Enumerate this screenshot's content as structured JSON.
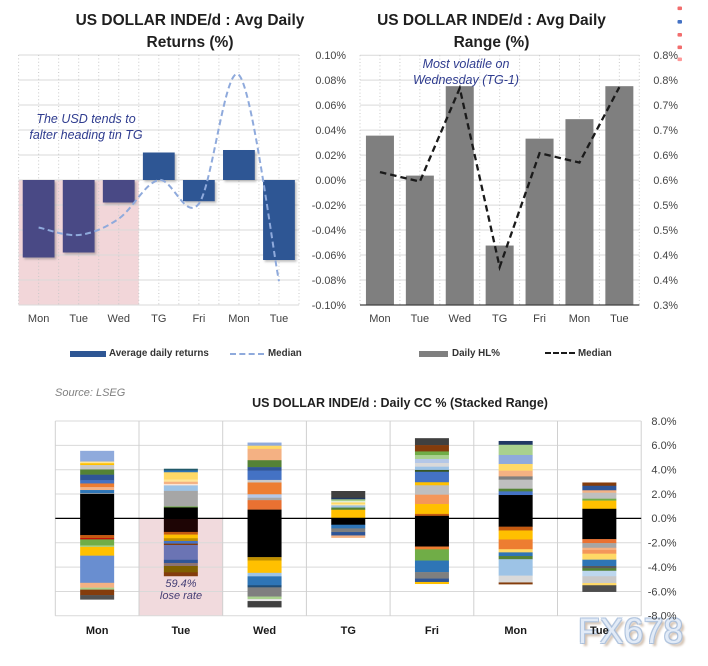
{
  "page_background": "#ffffff",
  "source_note": "Source: LSEG",
  "watermark": "FX678",
  "edge_marks": [
    {
      "y": 6.5,
      "color": "#F26D6D"
    },
    {
      "y": 20.0,
      "color": "#4472C4"
    },
    {
      "y": 33.0,
      "color": "#F26D6D"
    },
    {
      "y": 45.5,
      "color": "#F26D6D"
    },
    {
      "y": 57.5,
      "color": "#FF9999"
    }
  ],
  "chart_data": [
    {
      "type": "bar+line",
      "title": "US DOLLAR INDE/d : Avg Daily Returns (%)",
      "title_lines": [
        "US DOLLAR INDE/d : Avg Daily",
        "Returns (%)"
      ],
      "categories": [
        "Mon",
        "Tue",
        "Wed",
        "TG",
        "Fri",
        "Mon",
        "Tue"
      ],
      "unit": "%",
      "ylim": [
        -0.1,
        0.1
      ],
      "ytick_step": 0.02,
      "ytick_labels": [
        "0.10%",
        "0.08%",
        "0.06%",
        "0.04%",
        "0.02%",
        "0.00%",
        "-0.02%",
        "-0.04%",
        "-0.06%",
        "-0.08%",
        "-0.10%"
      ],
      "series": [
        {
          "name": "Average daily returns",
          "type": "bar",
          "values": [
            -0.062,
            -0.058,
            -0.018,
            0.022,
            -0.017,
            0.024,
            -0.064
          ]
        },
        {
          "name": "Median",
          "type": "line",
          "style": "dashed",
          "smooth": true,
          "values": [
            -0.038,
            -0.044,
            -0.031,
            0.0,
            -0.019,
            0.084,
            -0.081
          ]
        }
      ],
      "annotation": {
        "text_lines": [
          "The USD tends to",
          "falter heading tin TG"
        ],
        "color": "#2F3C8F"
      },
      "highlight": {
        "note": "shaded zone over Mon-Wed below zero",
        "category_span": [
          0,
          3
        ],
        "value_span": [
          -0.1,
          0
        ],
        "color": "#F2D6D9"
      },
      "colors": {
        "bar": "#2E5694",
        "bar_highlighted": "#4A4A85",
        "line": "#8FAADC",
        "zero_line": "#262626"
      },
      "legend": [
        {
          "label": "Average daily returns",
          "swatch": "bar",
          "color": "#2E5694"
        },
        {
          "label": "Median",
          "swatch": "dashed-line",
          "color": "#8FAADC"
        }
      ]
    },
    {
      "type": "bar+line",
      "title": "US DOLLAR INDE/d : Avg Daily Range (%)",
      "title_lines": [
        "US DOLLAR INDE/d : Avg Daily",
        "Range (%)"
      ],
      "categories": [
        "Mon",
        "Tue",
        "Wed",
        "TG",
        "Fri",
        "Mon",
        "Tue"
      ],
      "unit": "%",
      "ylim": [
        0.3,
        0.8
      ],
      "ytick_step": 0.05,
      "ytick_labels": [
        "0.8%",
        "0.8%",
        "0.7%",
        "0.7%",
        "0.6%",
        "0.6%",
        "0.5%",
        "0.5%",
        "0.4%",
        "0.4%",
        "0.3%"
      ],
      "series": [
        {
          "name": "Daily HL%",
          "type": "bar",
          "values": [
            0.639,
            0.559,
            0.738,
            0.419,
            0.633,
            0.672,
            0.738
          ]
        },
        {
          "name": "Median",
          "type": "line",
          "style": "dashed",
          "smooth": false,
          "values": [
            0.566,
            0.547,
            0.734,
            0.376,
            0.604,
            0.585,
            0.736
          ]
        }
      ],
      "annotation": {
        "text_lines": [
          "Most volatile on",
          "Wednesday (TG-1)"
        ],
        "color": "#2F3C8F"
      },
      "colors": {
        "bar": "#7F7F7F",
        "line": "#1A1A1A"
      },
      "legend": [
        {
          "label": "Daily HL%",
          "swatch": "bar",
          "color": "#7F7F7F"
        },
        {
          "label": "Median",
          "swatch": "dashed-line",
          "color": "#1A1A1A"
        }
      ]
    },
    {
      "type": "stacked-bar",
      "title": "US DOLLAR INDE/d : Daily CC % (Stacked Range)",
      "categories": [
        "Mon",
        "Tue",
        "Wed",
        "TG",
        "Fri",
        "Mon",
        "Tue"
      ],
      "unit": "%",
      "ylim": [
        -8,
        8
      ],
      "ytick_step": 2,
      "ytick_labels": [
        "8.0%",
        "6.0%",
        "4.0%",
        "2.0%",
        "0.0%",
        "-2.0%",
        "-4.0%",
        "-6.0%",
        "-8.0%"
      ],
      "annotation": {
        "text_lines": [
          "59.4%",
          "lose rate"
        ],
        "color": "#453F75"
      },
      "highlight": {
        "note": "shaded zone over Tue below zero",
        "category_span": [
          1,
          2
        ],
        "value_span": [
          -8,
          0
        ],
        "color": "#F1DADD"
      },
      "bars": [
        {
          "label": "Mon",
          "top": 5.55,
          "segments": [
            [
              "#8FAADC",
              0.88
            ],
            [
              "#FFE699",
              0.14
            ],
            [
              "#FFC000",
              0.15
            ],
            [
              "#C9C9C9",
              0.36
            ],
            [
              "#548235",
              0.43
            ],
            [
              "#2F5597",
              0.45
            ],
            [
              "#4472C4",
              0.27
            ],
            [
              "#ED7D31",
              0.3
            ],
            [
              "#F4B183",
              0.24
            ],
            [
              "#2E75B6",
              0.26
            ],
            [
              "#A6A6A6",
              0.06
            ],
            [
              "#000000",
              3.38
            ],
            [
              "#C55A11",
              0.25
            ],
            [
              "#C00000",
              0.1
            ],
            [
              "#70AD47",
              0.5
            ],
            [
              "#A9D18E",
              0.12
            ],
            [
              "#FFC000",
              0.72
            ],
            [
              "#698ED0",
              2.23
            ],
            [
              "#F4B183",
              0.4
            ],
            [
              "#A9D18E",
              0.16
            ],
            [
              "#843C0C",
              0.45
            ],
            [
              "#525252",
              0.35
            ]
          ]
        },
        {
          "label": "Tue",
          "top": 4.08,
          "segments": [
            [
              "#215968",
              0.14
            ],
            [
              "#2E75B6",
              0.15
            ],
            [
              "#FFD966",
              0.6
            ],
            [
              "#FFE699",
              0.18
            ],
            [
              "#F4B183",
              0.18
            ],
            [
              "#FBE5D6",
              0.12
            ],
            [
              "#9DC3E6",
              0.45
            ],
            [
              "#A6A6A6",
              1.28
            ],
            [
              "#70AD47",
              0.08
            ],
            [
              "#000000",
              0.9
            ],
            [
              "#1E0505",
              1.11
            ],
            [
              "#C55A11",
              0.22
            ],
            [
              "#FFC000",
              0.3
            ],
            [
              "#BF8F00",
              0.22
            ],
            [
              "#4472C4",
              0.22
            ],
            [
              "#843C0C",
              0.12
            ],
            [
              "#6B74B4",
              1.21
            ],
            [
              "#2F5597",
              0.26
            ],
            [
              "#8C7373",
              0.25
            ],
            [
              "#7F6000",
              0.52
            ],
            [
              "#843C0C",
              0.3
            ]
          ]
        },
        {
          "label": "Wed",
          "top": 6.23,
          "segments": [
            [
              "#8FAADC",
              0.26
            ],
            [
              "#FFD966",
              0.26
            ],
            [
              "#F4B183",
              0.93
            ],
            [
              "#548235",
              0.57
            ],
            [
              "#2F5597",
              0.29
            ],
            [
              "#4472C4",
              0.76
            ],
            [
              "#C9C9C9",
              0.21
            ],
            [
              "#ED7D31",
              0.97
            ],
            [
              "#B4C7E7",
              0.28
            ],
            [
              "#A6A6A6",
              0.2
            ],
            [
              "#E97132",
              0.78
            ],
            [
              "#000000",
              3.9
            ],
            [
              "#BF8F00",
              0.28
            ],
            [
              "#FFC000",
              1.01
            ],
            [
              "#9DC3E6",
              0.29
            ],
            [
              "#2E75B6",
              0.73
            ],
            [
              "#1F4E79",
              0.17
            ],
            [
              "#7F7F7F",
              0.76
            ],
            [
              "#A9D18E",
              0.21
            ],
            [
              "#E7E6E6",
              0.16
            ],
            [
              "#404040",
              0.5
            ]
          ]
        },
        {
          "label": "TG",
          "top": 2.25,
          "segments": [
            [
              "#404040",
              0.56
            ],
            [
              "#203864",
              0.12
            ],
            [
              "#A9D18E",
              0.15
            ],
            [
              "#E2EFDA",
              0.11
            ],
            [
              "#FFD966",
              0.13
            ],
            [
              "#FFE699",
              0.11
            ],
            [
              "#9DC3E6",
              0.18
            ],
            [
              "#548235",
              0.18
            ],
            [
              "#FFC000",
              0.71
            ],
            [
              "#000000",
              0.52
            ],
            [
              "#2E75B6",
              0.3
            ],
            [
              "#7F7F7F",
              0.3
            ],
            [
              "#2F5597",
              0.28
            ],
            [
              "#F4B183",
              0.18
            ]
          ]
        },
        {
          "label": "Fri",
          "top": 6.59,
          "segments": [
            [
              "#404040",
              0.57
            ],
            [
              "#843C0C",
              0.52
            ],
            [
              "#70AD47",
              0.3
            ],
            [
              "#A9D18E",
              0.32
            ],
            [
              "#B4C7E7",
              0.33
            ],
            [
              "#D9D9D9",
              0.3
            ],
            [
              "#9DC3E6",
              0.27
            ],
            [
              "#375623",
              0.15
            ],
            [
              "#4472C4",
              0.86
            ],
            [
              "#FFC000",
              0.25
            ],
            [
              "#BFBFBF",
              0.77
            ],
            [
              "#F4975A",
              0.77
            ],
            [
              "#FFC000",
              0.81
            ],
            [
              "#C55A11",
              0.16
            ],
            [
              "#000000",
              2.52
            ],
            [
              "#ED7D31",
              0.23
            ],
            [
              "#70AD47",
              0.92
            ],
            [
              "#2E75B6",
              0.95
            ],
            [
              "#7F7F7F",
              0.53
            ],
            [
              "#2F5597",
              0.28
            ],
            [
              "#FFC000",
              0.15
            ]
          ]
        },
        {
          "label": "Mon",
          "top": 6.36,
          "segments": [
            [
              "#203864",
              0.31
            ],
            [
              "#A9D18E",
              0.84
            ],
            [
              "#8FAADC",
              0.74
            ],
            [
              "#FFD966",
              0.55
            ],
            [
              "#F4B183",
              0.47
            ],
            [
              "#7F7F7F",
              0.27
            ],
            [
              "#BFBFBF",
              0.74
            ],
            [
              "#548235",
              0.22
            ],
            [
              "#4472C4",
              0.3
            ],
            [
              "#000000",
              2.6
            ],
            [
              "#C55A11",
              0.31
            ],
            [
              "#FFC000",
              0.74
            ],
            [
              "#ED7D31",
              0.8
            ],
            [
              "#FFD966",
              0.26
            ],
            [
              "#2E75B6",
              0.3
            ],
            [
              "#548235",
              0.26
            ],
            [
              "#9DC3E6",
              1.35
            ],
            [
              "#D9D9D9",
              0.56
            ],
            [
              "#843C0C",
              0.14
            ]
          ]
        },
        {
          "label": "Tue",
          "top": 2.95,
          "segments": [
            [
              "#843C0C",
              0.27
            ],
            [
              "#2F5597",
              0.37
            ],
            [
              "#F4B183",
              0.2
            ],
            [
              "#BFBFBF",
              0.49
            ],
            [
              "#70AD47",
              0.16
            ],
            [
              "#FFC000",
              0.67
            ],
            [
              "#000000",
              2.49
            ],
            [
              "#E97132",
              0.33
            ],
            [
              "#A6A6A6",
              0.38
            ],
            [
              "#F4B183",
              0.18
            ],
            [
              "#F4975A",
              0.31
            ],
            [
              "#FFD966",
              0.49
            ],
            [
              "#2E75B6",
              0.52
            ],
            [
              "#595959",
              0.18
            ],
            [
              "#548235",
              0.21
            ],
            [
              "#BDD7EE",
              0.45
            ],
            [
              "#C9C9C9",
              0.56
            ],
            [
              "#FFD966",
              0.18
            ],
            [
              "#4D4D4D",
              0.53
            ]
          ]
        }
      ]
    }
  ]
}
